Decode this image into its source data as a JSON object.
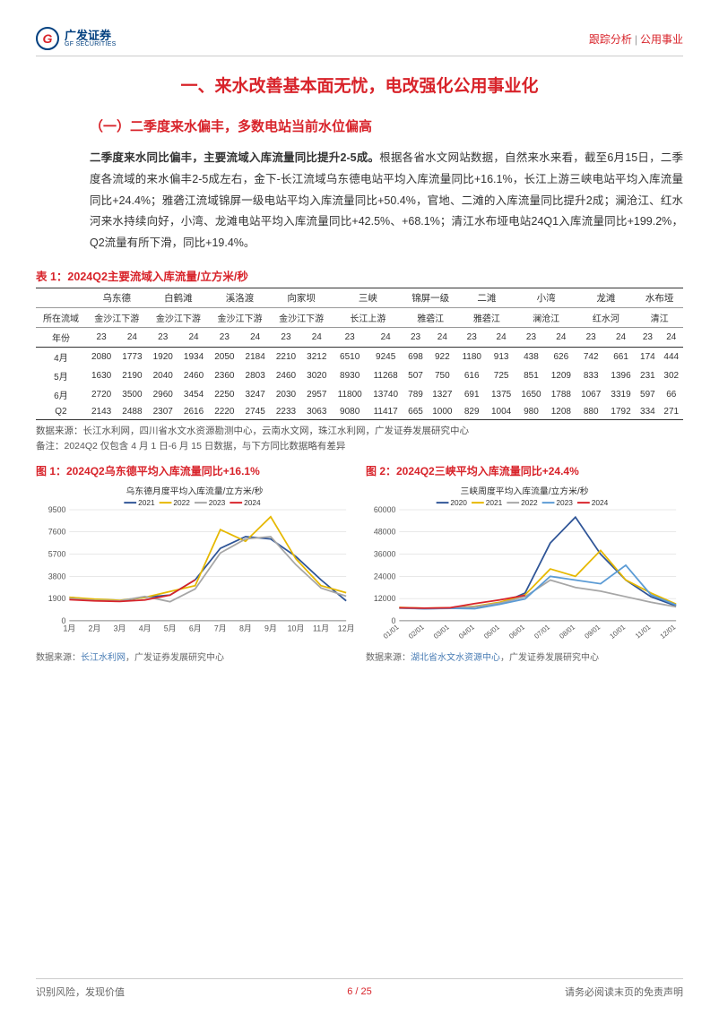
{
  "header": {
    "logo_cn": "广发证券",
    "logo_en": "GF SECURITIES",
    "right_a": "跟踪分析",
    "right_b": "公用事业"
  },
  "h1": "一、来水改善基本面无忧，电改强化公用事业化",
  "h2": "（一）二季度来水偏丰，多数电站当前水位偏高",
  "para_bold": "二季度来水同比偏丰，主要流域入库流量同比提升2-5成。",
  "para_rest": "根据各省水文网站数据，自然来水来看，截至6月15日，二季度各流域的来水偏丰2-5成左右，金下-长江流域乌东德电站平均入库流量同比+16.1%，长江上游三峡电站平均入库流量同比+24.4%；雅砻江流域锦屏一级电站平均入库流量同比+50.4%，官地、二滩的入库流量同比提升2成；澜沧江、红水河来水持续向好，小湾、龙滩电站平均入库流量同比+42.5%、+68.1%；清江水布垭电站24Q1入库流量同比+199.2%，Q2流量有所下滑，同比+19.4%。",
  "table": {
    "title": "表 1：2024Q2主要流域入库流量/立方米/秒",
    "stations": [
      "乌东德",
      "白鹤滩",
      "溪洛渡",
      "向家坝",
      "三峡",
      "锦屏一级",
      "二滩",
      "小湾",
      "龙滩",
      "水布垭"
    ],
    "basins_label": "所在流域",
    "basins": [
      "金沙江下游",
      "金沙江下游",
      "金沙江下游",
      "金沙江下游",
      "长江上游",
      "雅砻江",
      "雅砻江",
      "澜沧江",
      "红水河",
      "清江"
    ],
    "year_label": "年份",
    "years": [
      "23",
      "24",
      "23",
      "24",
      "23",
      "24",
      "23",
      "24",
      "23",
      "24",
      "23",
      "24",
      "23",
      "24",
      "23",
      "24",
      "23",
      "24",
      "23",
      "24"
    ],
    "rows": [
      {
        "label": "4月",
        "v": [
          "2080",
          "1773",
          "1920",
          "1934",
          "2050",
          "2184",
          "2210",
          "3212",
          "6510",
          "9245",
          "698",
          "922",
          "1180",
          "913",
          "438",
          "626",
          "742",
          "661",
          "174",
          "444"
        ]
      },
      {
        "label": "5月",
        "v": [
          "1630",
          "2190",
          "2040",
          "2460",
          "2360",
          "2803",
          "2460",
          "3020",
          "8930",
          "11268",
          "507",
          "750",
          "616",
          "725",
          "851",
          "1209",
          "833",
          "1396",
          "231",
          "302"
        ]
      },
      {
        "label": "6月",
        "v": [
          "2720",
          "3500",
          "2960",
          "3454",
          "2250",
          "3247",
          "2030",
          "2957",
          "11800",
          "13740",
          "789",
          "1327",
          "691",
          "1375",
          "1650",
          "1788",
          "1067",
          "3319",
          "597",
          "66"
        ]
      },
      {
        "label": "Q2",
        "v": [
          "2143",
          "2488",
          "2307",
          "2616",
          "2220",
          "2745",
          "2233",
          "3063",
          "9080",
          "11417",
          "665",
          "1000",
          "829",
          "1004",
          "980",
          "1208",
          "880",
          "1792",
          "334",
          "271"
        ]
      }
    ],
    "src": "数据来源：长江水利网，四川省水文水资源勘测中心，云南水文网，珠江水利网，广发证券发展研究中心",
    "note": "备注：2024Q2 仅包含 4 月 1 日-6 月 15 日数据，与下方同比数据略有差异"
  },
  "chart1": {
    "title": "图 1：2024Q2乌东德平均入库流量同比+16.1%",
    "subtitle": "乌东德月度平均入库流量/立方米/秒",
    "legend": [
      "2021",
      "2022",
      "2023",
      "2024"
    ],
    "colors": [
      "#2f5597",
      "#e6b800",
      "#a6a6a6",
      "#d8232a"
    ],
    "xlabels": [
      "1月",
      "2月",
      "3月",
      "4月",
      "5月",
      "6月",
      "7月",
      "8月",
      "9月",
      "10月",
      "11月",
      "12月"
    ],
    "yticks": [
      0,
      1900,
      3800,
      5700,
      7600,
      9500
    ],
    "series": [
      [
        2000,
        1800,
        1700,
        2000,
        2200,
        3500,
        6200,
        7200,
        7000,
        5500,
        3500,
        1700
      ],
      [
        2000,
        1850,
        1750,
        2000,
        2500,
        3000,
        7800,
        6800,
        8900,
        5300,
        3000,
        2400
      ],
      [
        1900,
        1750,
        1700,
        2080,
        1630,
        2720,
        5800,
        7000,
        7200,
        4800,
        2800,
        2100
      ],
      [
        1800,
        1700,
        1650,
        1773,
        2190,
        3500
      ]
    ],
    "src_pre": "数据来源：",
    "src_link": "长江水利网",
    "src_post": "，广发证券发展研究中心"
  },
  "chart2": {
    "title": "图 2：2024Q2三峡平均入库流量同比+24.4%",
    "subtitle": "三峡周度平均入库流量/立方米/秒",
    "legend": [
      "2020",
      "2021",
      "2022",
      "2023",
      "2024"
    ],
    "colors": [
      "#2f5597",
      "#e6b800",
      "#a6a6a6",
      "#5b9bd5",
      "#d8232a"
    ],
    "xlabels": [
      "01/01",
      "02/01",
      "03/01",
      "04/01",
      "05/01",
      "06/01",
      "07/01",
      "08/01",
      "09/01",
      "10/01",
      "11/01",
      "12/01"
    ],
    "yticks": [
      0,
      12000,
      24000,
      36000,
      48000,
      60000
    ],
    "series": [
      [
        7000,
        6500,
        6800,
        7500,
        9000,
        15000,
        42000,
        56000,
        36000,
        22000,
        13000,
        8000
      ],
      [
        7200,
        6800,
        7000,
        7800,
        10000,
        14000,
        28000,
        24000,
        38000,
        22000,
        15000,
        9000
      ],
      [
        7000,
        6700,
        6900,
        7600,
        9500,
        13000,
        22000,
        18000,
        16000,
        13000,
        10000,
        7500
      ],
      [
        6800,
        6500,
        6700,
        6510,
        8930,
        11800,
        24000,
        22000,
        20000,
        30000,
        14000,
        8500
      ],
      [
        7000,
        6800,
        7000,
        9245,
        11268,
        13740
      ]
    ],
    "src_pre": "数据来源：",
    "src_link": "湖北省水文水资源中心",
    "src_post": "，广发证券发展研究中心"
  },
  "footer": {
    "left": "识别风险，发现价值",
    "page": "6 / 25",
    "right": "请务必阅读末页的免责声明"
  },
  "style": {
    "accent": "#d8232a",
    "grid": "#d0d0d0",
    "axis_font": 9
  }
}
